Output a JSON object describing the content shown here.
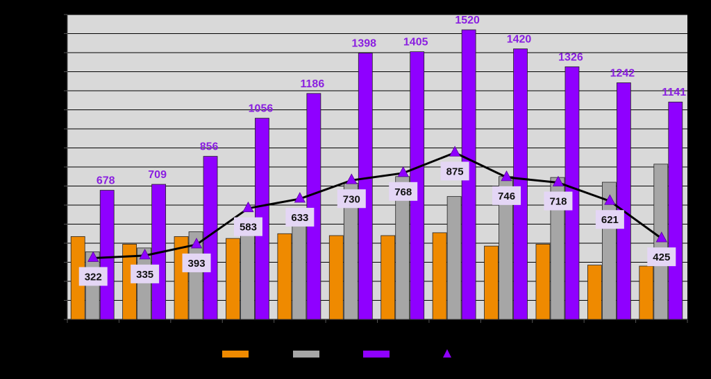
{
  "chart_data": {
    "type": "bar",
    "categories": [
      "",
      "",
      "",
      "",
      "",
      "",
      "",
      "",
      "",
      "",
      "",
      ""
    ],
    "ylim": [
      0,
      1600
    ],
    "grid": true,
    "legend": "bottom",
    "series": [
      {
        "kind": "bar",
        "color": "#ef8a00",
        "values": [
          435,
          395,
          435,
          425,
          450,
          440,
          440,
          455,
          385,
          395,
          285,
          280
        ]
      },
      {
        "kind": "bar",
        "color": "#a6a6a6",
        "values": [
          355,
          375,
          460,
          465,
          535,
          715,
          750,
          645,
          750,
          745,
          720,
          815
        ]
      },
      {
        "kind": "bar",
        "color": "#8f00ff",
        "label_color": "#8a1fe0",
        "values": [
          678,
          709,
          856,
          1056,
          1186,
          1398,
          1405,
          1520,
          1420,
          1326,
          1242,
          1141
        ]
      },
      {
        "kind": "line",
        "color": "#000000",
        "marker_color": "#8f00ff",
        "values": [
          322,
          335,
          393,
          583,
          633,
          730,
          768,
          875,
          746,
          718,
          621,
          425
        ]
      }
    ]
  },
  "data_labels": {
    "bar3": [
      "678",
      "709",
      "856",
      "1056",
      "1186",
      "1398",
      "1405",
      "1520",
      "1420",
      "1326",
      "1242",
      "1141"
    ],
    "line": [
      "322",
      "335",
      "393",
      "583",
      "633",
      "730",
      "768",
      "875",
      "746",
      "718",
      "621",
      "425"
    ]
  },
  "colors": {
    "background": "#000000",
    "plot_area": "#d9d9d9",
    "gridline": "#000000",
    "line_label_box": "#e4d6f5"
  }
}
